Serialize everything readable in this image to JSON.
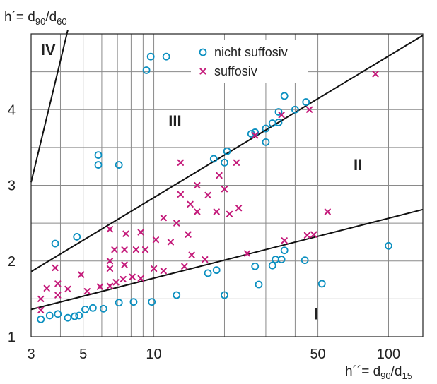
{
  "chart_data": {
    "type": "scatter",
    "title": "",
    "xscale": "log",
    "xlim": [
      3,
      140
    ],
    "ylim": [
      1,
      5
    ],
    "xlabel": "h´´= d90/d15",
    "xlabel_parts": {
      "main": "h´´= d",
      "sub1": "90",
      "slash": "/d",
      "sub2": "15"
    },
    "ylabel": "h´= d90/d60",
    "ylabel_parts": {
      "main": "h´= d",
      "sub1": "90",
      "slash": "/d",
      "sub2": "60"
    },
    "x_ticks": [
      3,
      5,
      10,
      50,
      100
    ],
    "x_tick_labels": [
      "3",
      "5",
      "10",
      "50",
      "100"
    ],
    "x_grid": [
      3,
      4,
      5,
      6,
      7,
      8,
      9,
      10,
      20,
      30,
      40,
      50,
      100
    ],
    "y_ticks": [
      1,
      2,
      3,
      4
    ],
    "y_tick_labels": [
      "1",
      "2",
      "3",
      "4"
    ],
    "y_grid": [
      1,
      1.5,
      2,
      2.5,
      3,
      3.5,
      4,
      4.5,
      5
    ],
    "grid": true,
    "legend_position": "top-center",
    "colors": {
      "circle": "#0a8fc0",
      "cross": "#c41a7a",
      "line": "#111111",
      "grid": "#8a8a8a"
    },
    "series": [
      {
        "name": "nicht suffosiv",
        "marker": "circle",
        "points": [
          [
            9.3,
            4.52
          ],
          [
            9.7,
            4.7
          ],
          [
            11.3,
            4.7
          ],
          [
            36,
            4.18
          ],
          [
            44.5,
            4.1
          ],
          [
            40,
            4.0
          ],
          [
            34,
            3.97
          ],
          [
            30,
            3.75
          ],
          [
            32,
            3.82
          ],
          [
            34,
            3.83
          ],
          [
            26,
            3.68
          ],
          [
            27,
            3.7
          ],
          [
            30,
            3.57
          ],
          [
            20.5,
            3.45
          ],
          [
            18,
            3.35
          ],
          [
            20,
            3.3
          ],
          [
            5.8,
            3.4
          ],
          [
            5.8,
            3.27
          ],
          [
            7.1,
            3.27
          ],
          [
            3.8,
            2.23
          ],
          [
            4.7,
            2.32
          ],
          [
            36,
            2.14
          ],
          [
            33,
            2.02
          ],
          [
            35,
            2.02
          ],
          [
            32,
            1.94
          ],
          [
            44,
            2.01
          ],
          [
            27,
            1.93
          ],
          [
            17,
            1.84
          ],
          [
            18.5,
            1.88
          ],
          [
            100,
            2.2
          ],
          [
            28,
            1.69
          ],
          [
            52,
            1.7
          ],
          [
            12.5,
            1.55
          ],
          [
            20,
            1.55
          ],
          [
            9.8,
            1.46
          ],
          [
            7.1,
            1.45
          ],
          [
            8.2,
            1.46
          ],
          [
            5.1,
            1.36
          ],
          [
            5.5,
            1.38
          ],
          [
            6.1,
            1.37
          ],
          [
            4.3,
            1.25
          ],
          [
            4.6,
            1.27
          ],
          [
            3.6,
            1.28
          ],
          [
            3.9,
            1.3
          ],
          [
            3.3,
            1.23
          ],
          [
            4.8,
            1.28
          ]
        ]
      },
      {
        "name": "suffosiv",
        "marker": "cross",
        "points": [
          [
            88,
            4.47
          ],
          [
            46,
            4.0
          ],
          [
            35,
            3.93
          ],
          [
            27,
            3.66
          ],
          [
            22.5,
            3.3
          ],
          [
            13,
            3.3
          ],
          [
            19,
            3.13
          ],
          [
            20,
            2.95
          ],
          [
            13,
            2.88
          ],
          [
            15.3,
            3.0
          ],
          [
            14.3,
            2.75
          ],
          [
            17,
            2.87
          ],
          [
            18.5,
            2.65
          ],
          [
            15.3,
            2.65
          ],
          [
            21,
            2.62
          ],
          [
            23,
            2.7
          ],
          [
            11,
            2.57
          ],
          [
            12.5,
            2.5
          ],
          [
            14,
            2.35
          ],
          [
            10.2,
            2.28
          ],
          [
            11.8,
            2.25
          ],
          [
            6.5,
            2.42
          ],
          [
            7.6,
            2.36
          ],
          [
            8.8,
            2.38
          ],
          [
            6.8,
            2.15
          ],
          [
            7.5,
            2.15
          ],
          [
            8.4,
            2.15
          ],
          [
            9.2,
            2.15
          ],
          [
            6.5,
            2.0
          ],
          [
            6.5,
            1.9
          ],
          [
            7.5,
            1.95
          ],
          [
            14.5,
            2.08
          ],
          [
            13.5,
            1.93
          ],
          [
            16.5,
            2.02
          ],
          [
            25,
            2.1
          ],
          [
            10,
            1.9
          ],
          [
            11,
            1.87
          ],
          [
            4.3,
            1.63
          ],
          [
            4.9,
            1.82
          ],
          [
            5.2,
            1.6
          ],
          [
            5.9,
            1.66
          ],
          [
            6.5,
            1.67
          ],
          [
            6.9,
            1.72
          ],
          [
            7.4,
            1.76
          ],
          [
            8.1,
            1.79
          ],
          [
            8.8,
            1.77
          ],
          [
            3.8,
            1.91
          ],
          [
            3.5,
            1.64
          ],
          [
            3.9,
            1.55
          ],
          [
            3.9,
            1.7
          ],
          [
            3.3,
            1.5
          ],
          [
            3.3,
            1.35
          ],
          [
            36,
            2.27
          ],
          [
            45,
            2.34
          ],
          [
            48,
            2.35
          ],
          [
            55,
            2.65
          ]
        ]
      }
    ],
    "boundary_lines": [
      {
        "label": "IV/III",
        "points": [
          [
            3,
            3.04
          ],
          [
            4.3,
            5.05
          ]
        ]
      },
      {
        "label": "III/II",
        "points": [
          [
            3,
            1.86
          ],
          [
            140,
            4.98
          ]
        ]
      },
      {
        "label": "II/I",
        "points": [
          [
            3,
            1.36
          ],
          [
            140,
            2.68
          ]
        ]
      }
    ],
    "region_labels": [
      {
        "text": "IV",
        "x": 3.55,
        "y": 4.72
      },
      {
        "text": "III",
        "x": 12.3,
        "y": 3.78
      },
      {
        "text": "II",
        "x": 74,
        "y": 3.2
      },
      {
        "text": "I",
        "x": 49,
        "y": 1.23
      }
    ]
  }
}
